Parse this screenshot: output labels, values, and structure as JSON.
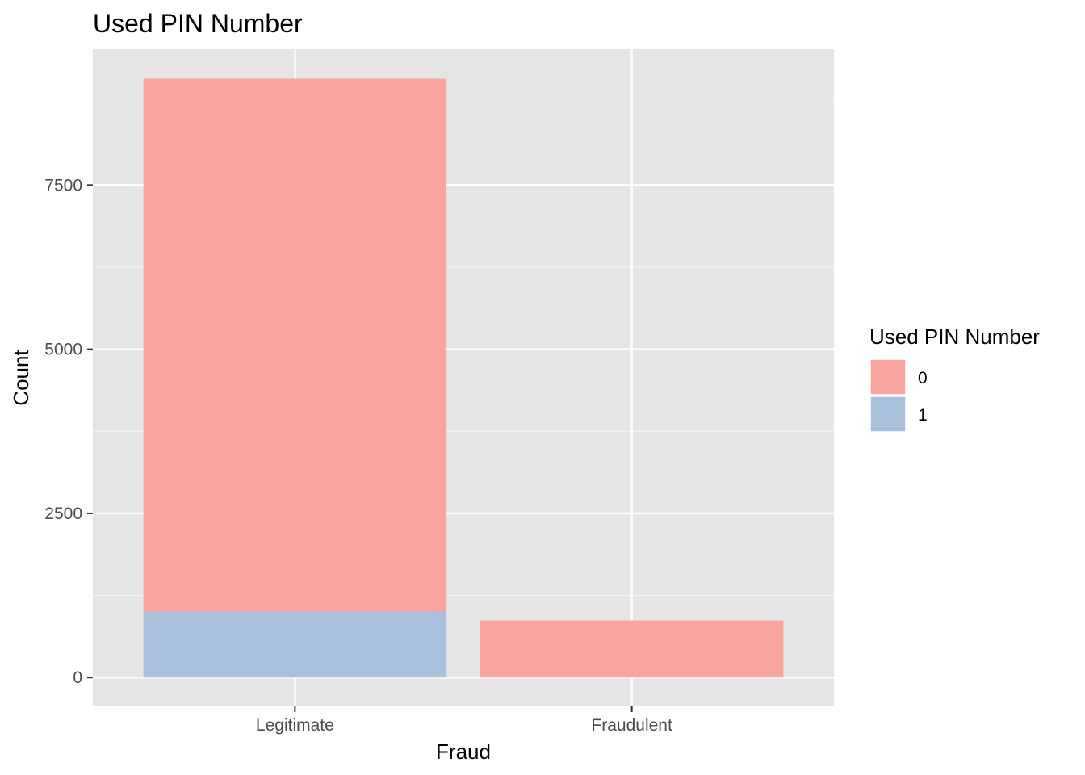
{
  "chart_data": {
    "type": "bar",
    "stacked": true,
    "title": "Used PIN Number",
    "xlabel": "Fraud",
    "ylabel": "Count",
    "categories": [
      "Legitimate",
      "Fraudulent"
    ],
    "series": [
      {
        "name": "0",
        "color": "#f8a5a0",
        "values": [
          8120,
          870
        ]
      },
      {
        "name": "1",
        "color": "#a7c0dc",
        "values": [
          1000,
          0
        ]
      }
    ],
    "yticks": [
      0,
      2500,
      5000,
      7500
    ],
    "ytick_labels": [
      "0",
      "2500",
      "5000",
      "7500"
    ],
    "ylim": [
      -440,
      9570
    ],
    "grid": true,
    "legend": {
      "title": "Used PIN Number",
      "position": "right"
    }
  }
}
